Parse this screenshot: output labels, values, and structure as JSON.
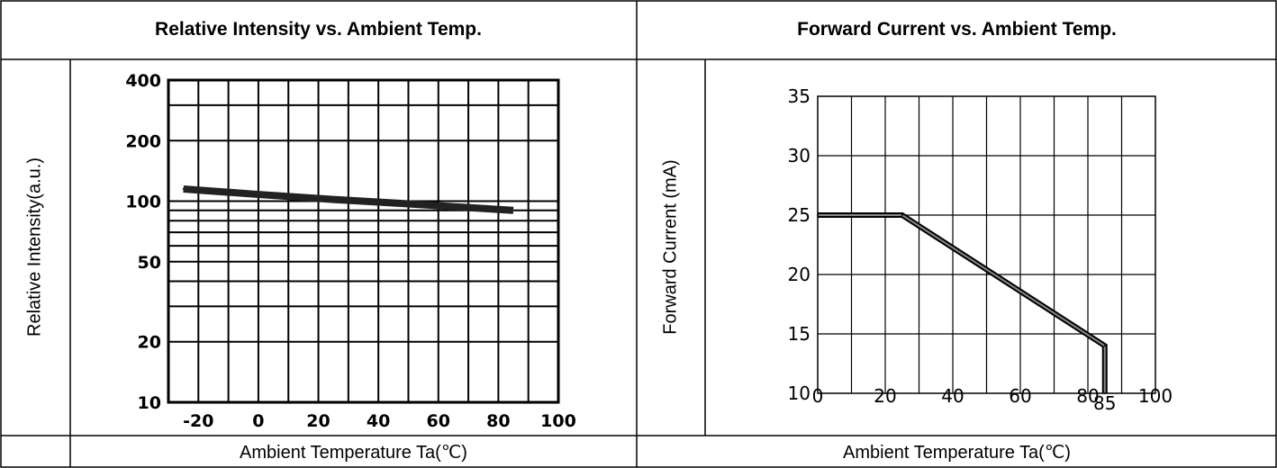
{
  "headers": {
    "left": "Relative Intensity vs. Ambient Temp.",
    "right": "Forward Current vs. Ambient Temp."
  },
  "footers": {
    "left": "Ambient Temperature Ta(℃)",
    "right": "Ambient Temperature Ta(℃)"
  },
  "chart_data": [
    {
      "type": "line",
      "title": "Relative Intensity vs. Ambient Temp.",
      "xlabel": "Ambient Temperature Ta(℃)",
      "ylabel": "Relative Intensity(a.u.)",
      "xlim": [
        -30,
        100
      ],
      "ylim": [
        10,
        400
      ],
      "yscale": "log",
      "grid": true,
      "x_ticks": [
        -20,
        0,
        20,
        40,
        60,
        80,
        100
      ],
      "x_tick_labels": [
        "-20",
        "0",
        "20",
        "40",
        "60",
        "80",
        "100"
      ],
      "y_ticks": [
        10,
        20,
        50,
        100,
        200,
        400
      ],
      "y_tick_labels": [
        "10",
        "20",
        "50",
        "100",
        "200",
        "400"
      ],
      "series": [
        {
          "x": [
            -25,
            0,
            25,
            50,
            85
          ],
          "values": [
            115,
            108,
            102,
            97,
            90
          ]
        }
      ]
    },
    {
      "type": "line",
      "title": "Forward Current vs. Ambient Temp.",
      "xlabel": "Ambient Temperature Ta(℃)",
      "ylabel": "Forward Current (mA)",
      "xlim": [
        0,
        100
      ],
      "ylim": [
        10,
        35
      ],
      "grid": true,
      "x_ticks": [
        0,
        20,
        40,
        60,
        80,
        100
      ],
      "x_tick_labels": [
        "0",
        "20",
        "40",
        "60",
        "80",
        "100"
      ],
      "extra_x_label": "85",
      "y_ticks": [
        10,
        15,
        20,
        25,
        30,
        35
      ],
      "y_tick_labels": [
        "10",
        "15",
        "20",
        "25",
        "30",
        "35"
      ],
      "series": [
        {
          "x": [
            0,
            25,
            85,
            85
          ],
          "values": [
            25,
            25,
            14,
            10
          ]
        }
      ]
    }
  ]
}
